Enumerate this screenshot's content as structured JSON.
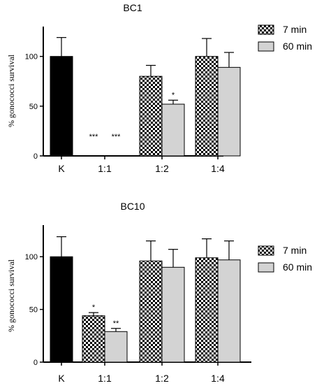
{
  "chart_data": [
    {
      "type": "bar",
      "title": "BC1",
      "ylabel": "% gonococci survival",
      "xlabel": "",
      "ylim": [
        0,
        130
      ],
      "yticks": [
        0,
        50,
        100
      ],
      "categories": [
        "K",
        "1:1",
        "1:2",
        "1:4"
      ],
      "control": {
        "category": "K",
        "value": 100,
        "error": 19,
        "color": "#000000"
      },
      "series": [
        {
          "name": "7 min",
          "pattern": "checkerboard",
          "values": [
            null,
            0,
            80,
            100
          ],
          "errors": [
            null,
            0,
            11,
            18
          ],
          "significance": [
            null,
            "***",
            "",
            ""
          ]
        },
        {
          "name": "60 min",
          "color": "#d3d3d3",
          "values": [
            null,
            0,
            52,
            89
          ],
          "errors": [
            null,
            0,
            4,
            15
          ],
          "significance": [
            null,
            "***",
            "*",
            ""
          ]
        }
      ],
      "legend": "top-right"
    },
    {
      "type": "bar",
      "title": "BC10",
      "ylabel": "% gonococci survival",
      "xlabel": "",
      "ylim": [
        0,
        130
      ],
      "yticks": [
        0,
        50,
        100
      ],
      "categories": [
        "K",
        "1:1",
        "1:2",
        "1:4"
      ],
      "control": {
        "category": "K",
        "value": 100,
        "error": 19,
        "color": "#000000"
      },
      "series": [
        {
          "name": "7 min",
          "pattern": "checkerboard",
          "values": [
            null,
            44,
            96,
            99
          ],
          "errors": [
            null,
            3,
            19,
            18
          ],
          "significance": [
            null,
            "*",
            "",
            ""
          ]
        },
        {
          "name": "60 min",
          "color": "#d3d3d3",
          "values": [
            null,
            29,
            90,
            97
          ],
          "errors": [
            null,
            3,
            17,
            18
          ],
          "significance": [
            null,
            "**",
            "",
            ""
          ]
        }
      ],
      "legend": "top-right"
    }
  ]
}
